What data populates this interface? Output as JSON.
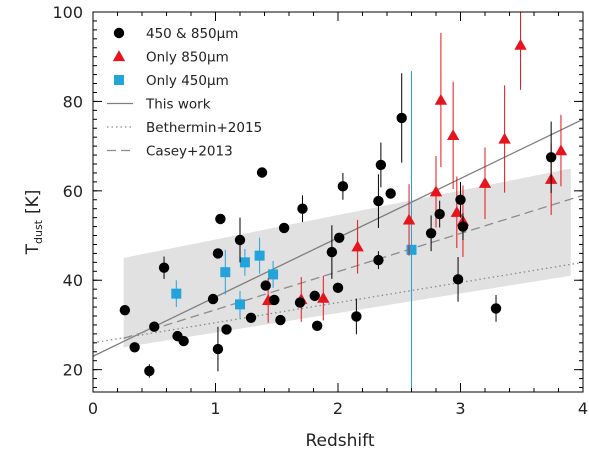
{
  "chart_data": {
    "type": "scatter",
    "xlabel": "Redshift",
    "ylabel": "T",
    "ylabel_sub": "dust",
    "ylabel_unit": "[K]",
    "xlim": [
      0,
      4
    ],
    "ylim": [
      15,
      100
    ],
    "xticks": [
      0,
      1,
      2,
      3,
      4
    ],
    "yticks": [
      20,
      40,
      60,
      80,
      100
    ],
    "grid": false,
    "legend_position": "top-left",
    "band": {
      "x": [
        0.25,
        3.9
      ],
      "lower": [
        25,
        41
      ],
      "upper": [
        45,
        65
      ],
      "color": "#e1e1e1"
    },
    "lines": [
      {
        "name": "This work",
        "style": "solid",
        "color": "#7f7f7f",
        "x": [
          0,
          4
        ],
        "y": [
          23,
          76
        ]
      },
      {
        "name": "Bethermin+2015",
        "style": "dotted",
        "color": "#8c8c8c",
        "x": [
          0,
          4
        ],
        "y": [
          26,
          44
        ]
      },
      {
        "name": "Casey+2013",
        "style": "dashed",
        "color": "#8c8c8c",
        "x": [
          0.25,
          4
        ],
        "y": [
          27,
          59
        ]
      }
    ],
    "series": [
      {
        "name": "450 & 850μm",
        "marker": "circle",
        "color": "#000000",
        "points": [
          {
            "x": 0.26,
            "y": 33.3
          },
          {
            "x": 0.34,
            "y": 25
          },
          {
            "x": 0.46,
            "y": 19.7,
            "yerr": 1.5
          },
          {
            "x": 0.5,
            "y": 29.6
          },
          {
            "x": 0.58,
            "y": 42.8,
            "yerr": 2.5
          },
          {
            "x": 0.69,
            "y": 27.5
          },
          {
            "x": 0.74,
            "y": 26.4
          },
          {
            "x": 0.98,
            "y": 35.8
          },
          {
            "x": 1.02,
            "y": 46
          },
          {
            "x": 1.02,
            "y": 24.6,
            "yerr": 5
          },
          {
            "x": 1.04,
            "y": 53.7
          },
          {
            "x": 1.09,
            "y": 29
          },
          {
            "x": 1.2,
            "y": 49,
            "yerr": 5
          },
          {
            "x": 1.29,
            "y": 31.6
          },
          {
            "x": 1.38,
            "y": 64.1
          },
          {
            "x": 1.41,
            "y": 38.8
          },
          {
            "x": 1.48,
            "y": 35.6
          },
          {
            "x": 1.53,
            "y": 31.1
          },
          {
            "x": 1.56,
            "y": 51.7
          },
          {
            "x": 1.69,
            "y": 35
          },
          {
            "x": 1.71,
            "y": 56,
            "yerr": 3
          },
          {
            "x": 1.81,
            "y": 36.5
          },
          {
            "x": 1.83,
            "y": 29.8
          },
          {
            "x": 1.95,
            "y": 46.3,
            "yerr": 6
          },
          {
            "x": 2.0,
            "y": 38.3
          },
          {
            "x": 2.01,
            "y": 49.5
          },
          {
            "x": 2.04,
            "y": 61,
            "yerr": 3
          },
          {
            "x": 2.15,
            "y": 31.9,
            "yerr": 4
          },
          {
            "x": 2.33,
            "y": 44.5,
            "yerr": 2
          },
          {
            "x": 2.33,
            "y": 57.7,
            "yerr": 6
          },
          {
            "x": 2.35,
            "y": 65.8,
            "yerr": 5
          },
          {
            "x": 2.43,
            "y": 59.4
          },
          {
            "x": 2.52,
            "y": 76.3,
            "yerr": 10
          },
          {
            "x": 2.76,
            "y": 50.5,
            "yerr": 4
          },
          {
            "x": 2.83,
            "y": 54.8,
            "yerr": 3
          },
          {
            "x": 2.98,
            "y": 40.2,
            "yerr": 5
          },
          {
            "x": 3.02,
            "y": 52,
            "yerr": 3
          },
          {
            "x": 3.0,
            "y": 58,
            "yerr": 4
          },
          {
            "x": 3.29,
            "y": 33.7,
            "yerr": 3
          },
          {
            "x": 3.74,
            "y": 67.5,
            "yerr": 8
          }
        ]
      },
      {
        "name": "Only 850μm",
        "marker": "triangle",
        "color": "#e8141c",
        "points": [
          {
            "x": 1.43,
            "y": 35.5,
            "yerr": 5
          },
          {
            "x": 1.7,
            "y": 35.7,
            "yerr": 5
          },
          {
            "x": 1.88,
            "y": 36,
            "yerr": 5
          },
          {
            "x": 2.16,
            "y": 47.5,
            "yerr": 6
          },
          {
            "x": 2.58,
            "y": 53.5,
            "yerr": 8
          },
          {
            "x": 2.8,
            "y": 59.8,
            "yerr": 8
          },
          {
            "x": 2.84,
            "y": 80.3,
            "yerr": 15
          },
          {
            "x": 2.94,
            "y": 72.4,
            "yerr": 12
          },
          {
            "x": 2.97,
            "y": 55.2,
            "yerr": 8
          },
          {
            "x": 3.02,
            "y": 53.2,
            "yerr": 8
          },
          {
            "x": 3.2,
            "y": 61.7,
            "yerr": 8
          },
          {
            "x": 3.36,
            "y": 71.6,
            "yerr": 12
          },
          {
            "x": 3.49,
            "y": 92.6,
            "yerr": 10
          },
          {
            "x": 3.74,
            "y": 62.6,
            "yerr": 8
          },
          {
            "x": 3.82,
            "y": 69,
            "yerr": 8
          }
        ]
      },
      {
        "name": "Only 450μm",
        "marker": "square",
        "color": "#23a3dc",
        "points": [
          {
            "x": 0.68,
            "y": 37,
            "yerr": 3
          },
          {
            "x": 1.08,
            "y": 41.8,
            "yerr": 5
          },
          {
            "x": 1.2,
            "y": 34.6,
            "yerr": 3
          },
          {
            "x": 1.24,
            "y": 44,
            "yerr": 3
          },
          {
            "x": 1.36,
            "y": 45.5,
            "yerr": 4
          },
          {
            "x": 1.47,
            "y": 41.3,
            "yerr": 3
          },
          {
            "x": 2.6,
            "y": 46.8,
            "yerr": 40
          }
        ]
      }
    ]
  }
}
